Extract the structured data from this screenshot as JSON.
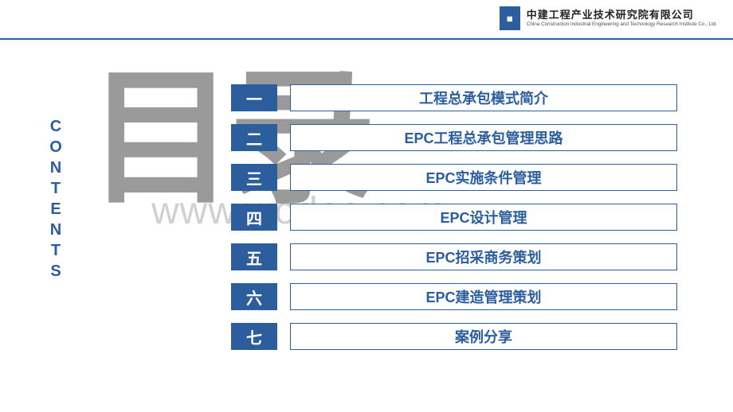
{
  "header": {
    "company_cn": "中建工程产业技术研究院有限公司",
    "company_en": "China Construction Industrial Engineering and Technology Research Institute Co., Ltd.",
    "logo_text": "▦"
  },
  "left": {
    "contents_label": "CONTENTS",
    "mulu": "目录",
    "watermark": "www.wodoc.com"
  },
  "toc": {
    "items": [
      {
        "num": "一",
        "title": "工程总承包模式简介"
      },
      {
        "num": "二",
        "title": "EPC工程总承包管理思路"
      },
      {
        "num": "三",
        "title": "EPC实施条件管理"
      },
      {
        "num": "四",
        "title": "EPC设计管理"
      },
      {
        "num": "五",
        "title": "EPC招采商务策划"
      },
      {
        "num": "六",
        "title": "EPC建造管理策划"
      },
      {
        "num": "七",
        "title": "案例分享"
      }
    ]
  },
  "colors": {
    "primary": "#2c5e9e",
    "gray": "#9a9a9a",
    "bg": "#ffffff"
  }
}
